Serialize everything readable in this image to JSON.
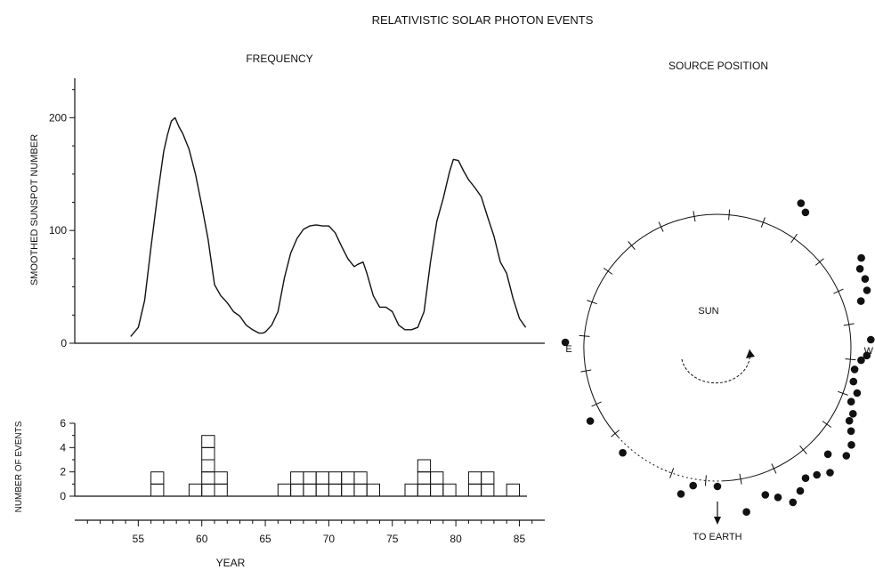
{
  "figure": {
    "title": "RELATIVISTIC  SOLAR  PHOTON  EVENTS",
    "left_panel_title": "FREQUENCY",
    "right_panel_title": "SOURCE  POSITION"
  },
  "colors": {
    "ink": "#111111",
    "paper": "#ffffff"
  },
  "chart_data": [
    {
      "type": "line",
      "title": "",
      "xlabel": "",
      "ylabel": "SMOOTHED  SUNSPOT  NUMBER",
      "xlim": [
        50,
        87
      ],
      "ylim": [
        0,
        235
      ],
      "yticks": [
        0,
        100,
        200
      ],
      "ytick_labels": [
        "0",
        "100",
        "200"
      ],
      "grid": false,
      "series": [
        {
          "x": [
            54.4,
            55.0,
            55.5,
            56.0,
            56.5,
            57.0,
            57.3,
            57.6,
            57.9,
            58.2,
            58.5,
            59.0,
            59.5,
            60.0,
            60.5,
            61.0,
            61.5,
            62.0,
            62.5,
            63.0,
            63.5,
            64.0,
            64.5,
            64.8,
            65.0,
            65.5,
            66.0,
            66.5,
            67.0,
            67.5,
            68.0,
            68.5,
            69.0,
            69.5,
            70.0,
            70.5,
            71.0,
            71.5,
            72.0,
            72.3,
            72.7,
            73.0,
            73.5,
            74.0,
            74.5,
            75.0,
            75.5,
            76.0,
            76.5,
            77.0,
            77.5,
            78.0,
            78.5,
            79.0,
            79.5,
            79.8,
            80.2,
            80.6,
            81.0,
            81.5,
            82.0,
            82.5,
            83.0,
            83.5,
            84.0,
            84.5,
            85.0,
            85.5
          ],
          "y": [
            6,
            14,
            38,
            85,
            130,
            170,
            185,
            197,
            200,
            192,
            186,
            172,
            150,
            122,
            92,
            52,
            42,
            36,
            28,
            24,
            16,
            12,
            9,
            9,
            10,
            16,
            28,
            58,
            80,
            93,
            101,
            104,
            105,
            104,
            104,
            98,
            86,
            75,
            68,
            70,
            72,
            62,
            42,
            32,
            32,
            28,
            16,
            12,
            12,
            14,
            28,
            72,
            108,
            128,
            152,
            163,
            162,
            153,
            145,
            138,
            130,
            112,
            95,
            72,
            62,
            40,
            22,
            14
          ]
        }
      ]
    },
    {
      "type": "bar",
      "title": "",
      "xlabel": "YEAR",
      "ylabel": "NUMBER OF EVENTS",
      "xlim": [
        50,
        87
      ],
      "ylim": [
        0,
        6
      ],
      "yticks": [
        0,
        2,
        4,
        6
      ],
      "ytick_labels": [
        "0",
        "2",
        "4",
        "6"
      ],
      "xticks": [
        55,
        60,
        65,
        70,
        75,
        80,
        85
      ],
      "xtick_labels": [
        "55",
        "60",
        "65",
        "70",
        "75",
        "80",
        "85"
      ],
      "grid": false,
      "series": [
        {
          "x": [
            56.5,
            59.5,
            60.5,
            61.5,
            66.5,
            67.5,
            68.5,
            69.5,
            70.5,
            71.5,
            72.5,
            73.5,
            76.5,
            77.5,
            78.5,
            79.5,
            80.5,
            81.5,
            82.5,
            83.5,
            84.5
          ],
          "values": [
            2,
            1,
            5,
            2,
            1,
            2,
            2,
            2,
            2,
            2,
            2,
            1,
            1,
            3,
            2,
            1,
            0,
            2,
            2,
            0,
            1
          ]
        }
      ]
    },
    {
      "type": "scatter",
      "title": "",
      "description_labels": {
        "center": "SUN",
        "east": "E",
        "west": "W",
        "earth": "TO  EARTH"
      },
      "note": "polar positions: angle in degrees measured from East limb (180 = E, 0 = W), radius in solar radii",
      "series": [
        {
          "angle": [
            178,
            60,
            57,
            32,
            29,
            25,
            21,
            18,
            3,
            1,
            -1,
            -3,
            -5,
            -9,
            -14,
            -18,
            -22,
            -26,
            -29,
            -32,
            -36,
            -40,
            -44,
            -48,
            -52,
            -56,
            -60,
            -64,
            -68,
            -72,
            -80,
            -104,
            -100,
            -90,
            -132,
            -150
          ],
          "radius": [
            1.14,
            1.25,
            1.21,
            1.27,
            1.22,
            1.22,
            1.2,
            1.13,
            1.15,
            1.22,
            1.3,
            1.12,
            1.08,
            1.04,
            1.05,
            1.1,
            1.08,
            1.13,
            1.13,
            1.18,
            1.24,
            1.26,
            1.15,
            1.26,
            1.21,
            1.18,
            1.24,
            1.29,
            1.21,
            1.16,
            1.25,
            1.13,
            1.05,
            1.04,
            1.06,
            1.1
          ]
        }
      ]
    }
  ]
}
